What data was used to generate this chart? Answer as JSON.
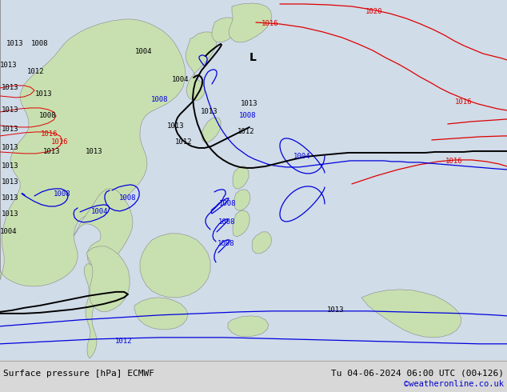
{
  "title_left": "Surface pressure [hPa] ECMWF",
  "title_right": "Tu 04-06-2024 06:00 UTC (00+126)",
  "copyright": "©weatheronline.co.uk",
  "ocean_color": "#d0dce8",
  "land_color": "#c8e0b0",
  "land_edge_color": "#888888",
  "fig_width": 6.34,
  "fig_height": 4.9,
  "dpi": 100,
  "bottom_bar_color": "#d8d8d8",
  "bottom_text_color": "#000000",
  "copyright_color": "#0000cc",
  "blue_isobar": "#0000dd",
  "black_isobar": "#000000",
  "red_isobar": "#dd0000",
  "isobar_lw_thin": 0.9,
  "isobar_lw_thick": 1.4,
  "label_fontsize": 6.5
}
